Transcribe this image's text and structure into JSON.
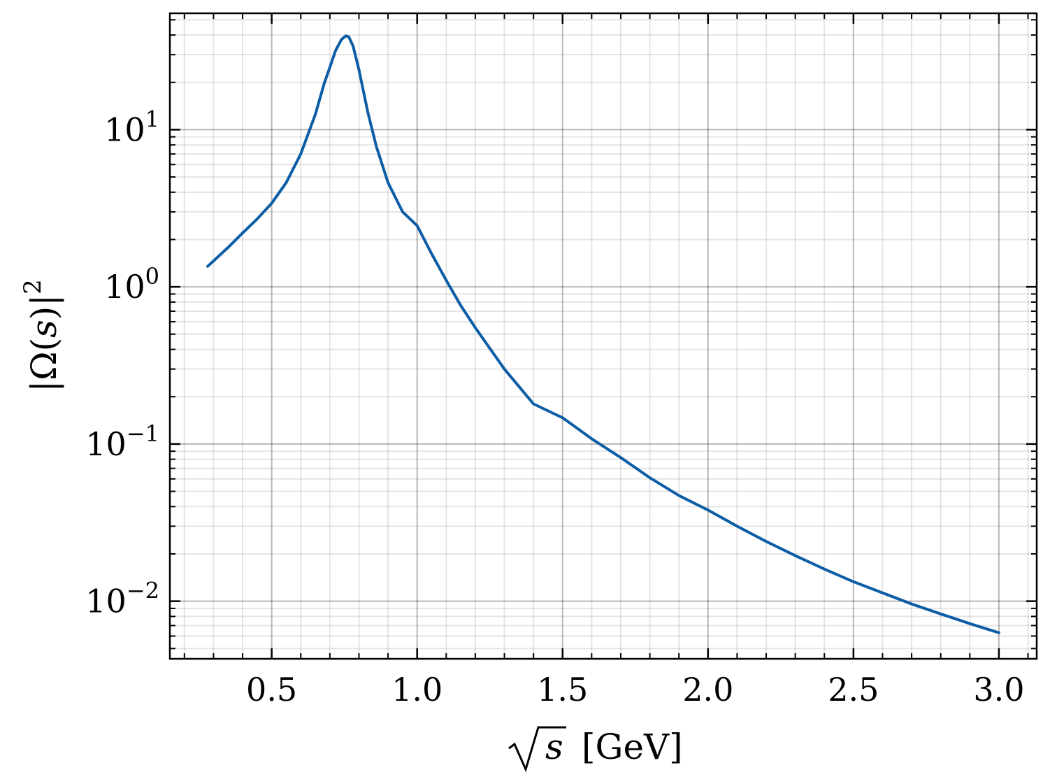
{
  "chart_data": {
    "type": "line",
    "title": "",
    "xlabel": "√s [GeV]",
    "ylabel": "|Ω(s)|²",
    "xlim": [
      0.15,
      3.13
    ],
    "ylim": [
      0.0043,
      55
    ],
    "yscale": "log",
    "grid": true,
    "legend": "none",
    "x_ticks": [
      0.5,
      1.0,
      1.5,
      2.0,
      2.5,
      3.0
    ],
    "x_tick_labels": [
      "0.5",
      "1.0",
      "1.5",
      "2.0",
      "2.5",
      "3.0"
    ],
    "y_ticks": [
      0.01,
      0.1,
      1,
      10
    ],
    "y_tick_labels": [
      {
        "base": "10",
        "exp": "−2"
      },
      {
        "base": "10",
        "exp": "−1"
      },
      {
        "base": "10",
        "exp": "0"
      },
      {
        "base": "10",
        "exp": "1"
      }
    ],
    "series": [
      {
        "color": "#0C5DA5",
        "x": [
          0.28,
          0.35,
          0.4,
          0.45,
          0.5,
          0.55,
          0.6,
          0.65,
          0.68,
          0.7,
          0.72,
          0.74,
          0.755,
          0.765,
          0.78,
          0.8,
          0.83,
          0.86,
          0.9,
          0.95,
          1.0,
          1.05,
          1.1,
          1.15,
          1.2,
          1.3,
          1.4,
          1.5,
          1.6,
          1.7,
          1.8,
          1.9,
          2.0,
          2.1,
          2.2,
          2.3,
          2.4,
          2.5,
          2.6,
          2.7,
          2.8,
          2.9,
          3.0
        ],
        "y": [
          1.35,
          1.78,
          2.2,
          2.7,
          3.4,
          4.6,
          7.0,
          12.5,
          19.5,
          25.0,
          32.0,
          37.5,
          39.5,
          39.0,
          34.0,
          24.0,
          13.0,
          7.8,
          4.6,
          3.0,
          2.45,
          1.62,
          1.1,
          0.76,
          0.55,
          0.3,
          0.18,
          0.147,
          0.108,
          0.082,
          0.061,
          0.047,
          0.038,
          0.03,
          0.024,
          0.0195,
          0.016,
          0.0133,
          0.0113,
          0.0096,
          0.0083,
          0.0072,
          0.0063
        ]
      }
    ]
  }
}
